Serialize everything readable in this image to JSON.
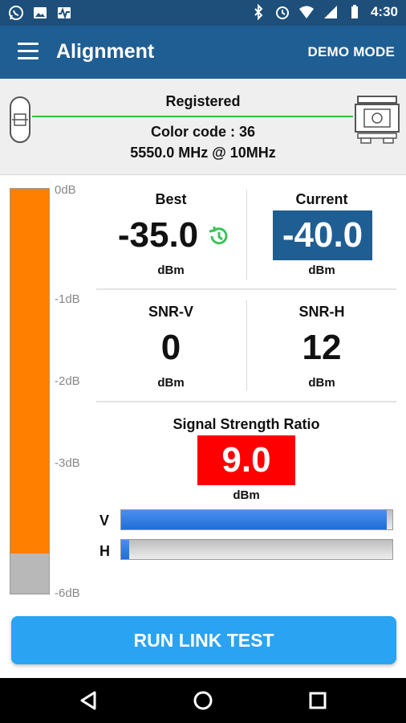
{
  "status_bar": {
    "time": "4:30",
    "left_icons": [
      "whatsapp-icon",
      "image-icon",
      "activity-icon"
    ],
    "right_icons": [
      "bluetooth-icon",
      "alarm-icon",
      "wifi-icon",
      "signal-icon",
      "battery-icon"
    ]
  },
  "app_bar": {
    "title": "Alignment",
    "action": "DEMO MODE",
    "menu_icon": "menu-icon"
  },
  "link": {
    "status": "Registered",
    "color_code": "Color code : 36",
    "frequency": "5550.0 MHz @ 10MHz",
    "line_color": "#2fbf4a"
  },
  "level_meter": {
    "ticks": [
      "0dB",
      "-1dB",
      "-2dB",
      "-3dB",
      "-6dB"
    ],
    "fill_fraction": 0.9,
    "fill_color": "#ff7f00"
  },
  "metrics": {
    "best": {
      "label": "Best",
      "value": "-35.0",
      "unit": "dBm",
      "icon": "history-icon"
    },
    "current": {
      "label": "Current",
      "value": "-40.0",
      "unit": "dBm"
    },
    "snr_v": {
      "label": "SNR-V",
      "value": "0",
      "unit": "dBm"
    },
    "snr_h": {
      "label": "SNR-H",
      "value": "12",
      "unit": "dBm"
    },
    "ssr": {
      "label": "Signal Strength Ratio",
      "value": "9.0",
      "unit": "dBm",
      "color": "#ff0000"
    }
  },
  "bars": {
    "v": {
      "label": "V",
      "fraction": 0.98
    },
    "h": {
      "label": "H",
      "fraction": 0.03
    }
  },
  "button": {
    "label": "RUN LINK TEST"
  },
  "nav": {
    "icons": [
      "back-icon",
      "home-icon",
      "recents-icon"
    ]
  }
}
